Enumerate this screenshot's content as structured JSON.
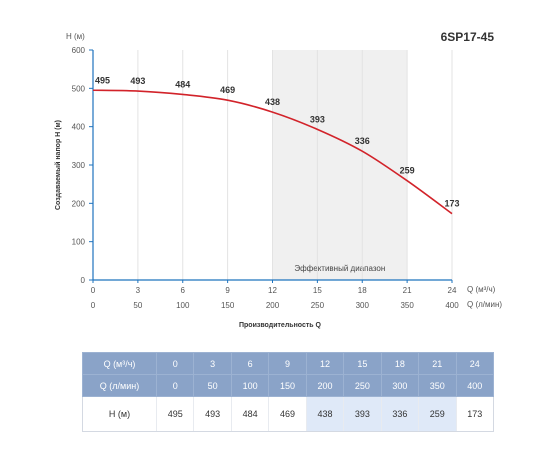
{
  "model": "6SP17-45",
  "chart_data": {
    "type": "line",
    "title": "6SP17-45",
    "ylabel": "Создаваемый напор Н (м)",
    "y_unit": "H (м)",
    "xlabel": "Производительность Q",
    "x_unit_primary": "Q (м³/ч)",
    "x_unit_secondary": "Q (л/мин)",
    "ylim": [
      0,
      600
    ],
    "y_ticks": [
      "0",
      "100",
      "200",
      "300",
      "400",
      "500",
      "600"
    ],
    "x_ticks_m3h": [
      "0",
      "3",
      "6",
      "9",
      "12",
      "15",
      "18",
      "21",
      "24"
    ],
    "x_ticks_lmin": [
      "0",
      "50",
      "100",
      "150",
      "200",
      "250",
      "300",
      "350",
      "400"
    ],
    "series": [
      {
        "x": [
          0,
          3,
          6,
          9,
          12,
          15,
          18,
          21,
          24
        ],
        "values": [
          495,
          493,
          484,
          469,
          438,
          393,
          336,
          259,
          173
        ],
        "color": "#d2232a"
      }
    ],
    "data_labels": [
      "495",
      "493",
      "484",
      "469",
      "438",
      "393",
      "336",
      "259",
      "173"
    ],
    "efficient_range": {
      "label": "Эффективный диапазон",
      "from": 12,
      "to": 21
    },
    "grid": "vertical",
    "line_color": "#d2232a"
  },
  "table": {
    "rows": [
      {
        "label": "Q (м³/ч)",
        "cells": [
          "0",
          "3",
          "6",
          "9",
          "12",
          "15",
          "18",
          "21",
          "24"
        ]
      },
      {
        "label": "Q (л/мин)",
        "cells": [
          "0",
          "50",
          "100",
          "150",
          "200",
          "250",
          "300",
          "350",
          "400"
        ]
      },
      {
        "label": "H (м)",
        "cells": [
          "495",
          "493",
          "484",
          "469",
          "438",
          "393",
          "336",
          "259",
          "173"
        ]
      }
    ],
    "highlight_columns": [
      4,
      5,
      6,
      7
    ],
    "header_color": "#8aa3c8",
    "highlight_color": "#dfe9f8"
  }
}
